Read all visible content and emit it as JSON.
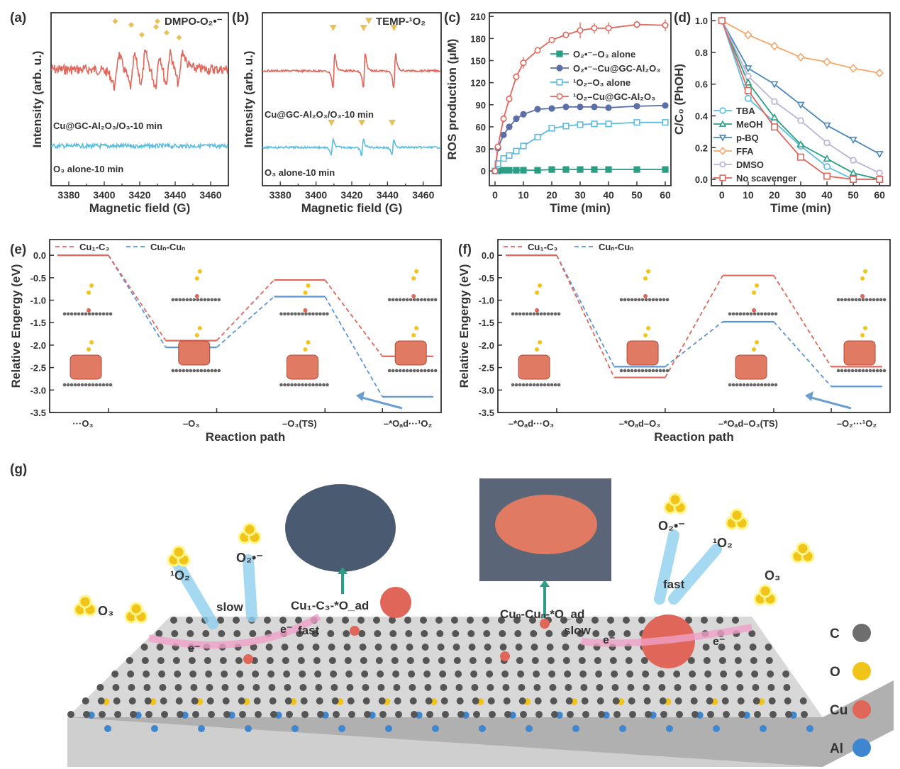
{
  "panel_labels": [
    "(a)",
    "(b)",
    "(c)",
    "(d)",
    "(e)",
    "(f)",
    "(g)"
  ],
  "colors": {
    "red": "#e0675c",
    "cyan": "#5bbde0",
    "navy": "#5b6ea8",
    "teal": "#2a9f84",
    "orange": "#f2a86c",
    "lavender": "#b9b4d9",
    "steel": "#4b87b9",
    "marker": "#e8c15a",
    "blue_line": "#5b95d6"
  },
  "chart_data": [
    {
      "id": "a",
      "type": "line",
      "xlabel": "Magnetic field (G)",
      "ylabel": "Intensity (arb. u.)",
      "xlim": [
        3370,
        3470
      ],
      "xticks": [
        3380,
        3400,
        3420,
        3440,
        3460
      ],
      "legend": {
        "marker": "diamond",
        "label": "DMPO-O₂•⁻"
      },
      "series": [
        {
          "name": "Cu@GC-Al₂O₃/O₃-10 min",
          "color": "#e0675c",
          "peaks": [
            3407,
            3416,
            3422,
            3430,
            3436,
            3443
          ],
          "signal": "strong"
        },
        {
          "name": "O₃ alone-10 min",
          "color": "#5bbde0",
          "peaks": [],
          "signal": "none"
        }
      ]
    },
    {
      "id": "b",
      "type": "line",
      "xlabel": "Magnetic field (G)",
      "ylabel": "Intensity (arb. u.)",
      "xlim": [
        3370,
        3470
      ],
      "xticks": [
        3380,
        3400,
        3420,
        3440,
        3460
      ],
      "legend": {
        "marker": "triangle-down",
        "label": "TEMP-¹O₂"
      },
      "series": [
        {
          "name": "Cu@GC-Al₂O₃/O₃-10 min",
          "color": "#e0675c",
          "peaks": [
            3410,
            3427,
            3444
          ],
          "signal": "strong"
        },
        {
          "name": "O₃ alone-10 min",
          "color": "#5bbde0",
          "peaks": [
            3409,
            3426,
            3443
          ],
          "signal": "medium"
        }
      ]
    },
    {
      "id": "c",
      "type": "line",
      "xlabel": "Time (min)",
      "ylabel": "ROS production (μM)",
      "xlim": [
        -2,
        62
      ],
      "ylim": [
        -20,
        215
      ],
      "xticks": [
        0,
        10,
        20,
        30,
        40,
        50,
        60
      ],
      "yticks": [
        0,
        30,
        60,
        90,
        120,
        150,
        180,
        210
      ],
      "x": [
        0,
        1,
        3,
        5,
        7.5,
        10,
        15,
        20,
        25,
        30,
        35,
        40,
        50,
        60
      ],
      "legend_position": "center-right",
      "series": [
        {
          "name": "O₂•⁻–O₃ alone",
          "color": "#2a9f84",
          "marker": "square-filled",
          "values": [
            0,
            0,
            1,
            1,
            1,
            1,
            1,
            2,
            2,
            2,
            2,
            2,
            2,
            2
          ]
        },
        {
          "name": "O₂•⁻–Cu@GC-Al₂O₃",
          "color": "#5b6ea8",
          "marker": "circle-filled",
          "values": [
            0,
            31,
            49,
            60,
            71,
            77,
            84,
            85,
            87,
            87,
            87,
            86,
            88,
            89
          ]
        },
        {
          "name": "¹O₂–O₃ alone",
          "color": "#5bbde0",
          "marker": "square-open",
          "values": [
            0,
            10,
            17,
            21,
            27,
            34,
            46,
            58,
            61,
            63,
            64,
            64,
            66,
            66
          ]
        },
        {
          "name": "¹O₂–Cu@GC-Al₂O₃",
          "color": "#e0675c",
          "marker": "circle-open",
          "values": [
            0,
            33,
            71,
            98,
            128,
            147,
            164,
            178,
            185,
            191,
            194,
            194,
            199,
            198
          ],
          "errors": [
            0,
            4,
            5,
            5,
            5,
            8,
            4,
            4,
            3,
            11,
            7,
            8,
            5,
            8
          ]
        }
      ]
    },
    {
      "id": "d",
      "type": "line",
      "xlabel": "Time (min)",
      "ylabel": "C/C₀ (PhOH)",
      "xlim": [
        -4,
        64
      ],
      "ylim": [
        -0.04,
        1.05
      ],
      "xticks": [
        0,
        10,
        20,
        30,
        40,
        50,
        60
      ],
      "yticks": [
        0.0,
        0.2,
        0.4,
        0.6,
        0.8,
        1.0
      ],
      "x": [
        0,
        10,
        20,
        30,
        40,
        50,
        60
      ],
      "legend_position": "bottom-left",
      "series": [
        {
          "name": "TBA",
          "color": "#5bbde0",
          "marker": "circle-open",
          "values": [
            1,
            0.51,
            0.36,
            0.21,
            0.08,
            0,
            0
          ]
        },
        {
          "name": "MeOH",
          "color": "#2a9f84",
          "marker": "triangle-up-open",
          "values": [
            1,
            0.61,
            0.39,
            0.22,
            0.13,
            0.04,
            0
          ]
        },
        {
          "name": "p-BQ",
          "color": "#4b87b9",
          "marker": "triangle-down-open",
          "values": [
            1,
            0.7,
            0.6,
            0.47,
            0.34,
            0.25,
            0.16
          ]
        },
        {
          "name": "FFA",
          "color": "#f2a86c",
          "marker": "diamond-open",
          "values": [
            1,
            0.91,
            0.84,
            0.77,
            0.74,
            0.7,
            0.67
          ]
        },
        {
          "name": "DMSO",
          "color": "#b9b4d9",
          "marker": "hexagon-open",
          "values": [
            1,
            0.65,
            0.49,
            0.37,
            0.23,
            0.12,
            0.04
          ]
        },
        {
          "name": "No scavenger",
          "color": "#e0675c",
          "marker": "square-open",
          "values": [
            1,
            0.56,
            0.33,
            0.14,
            0.02,
            0,
            0
          ]
        }
      ]
    },
    {
      "id": "e",
      "type": "energy-diagram",
      "xlabel": "Reaction path",
      "ylabel": "Relative Engergy (eV)",
      "ylim": [
        -3.5,
        0.35
      ],
      "yticks": [
        0.0,
        -0.5,
        -1.0,
        -1.5,
        -2.0,
        -2.5,
        -3.0,
        -3.5
      ],
      "categories": [
        "···O₃",
        "–O₃",
        "–O₃(TS)",
        "–*O_ad···¹O₂"
      ],
      "legend_position": "top-left",
      "series": [
        {
          "name": "Cu₁-C₃",
          "color": "#e0675c",
          "values": [
            0.0,
            -1.9,
            -0.55,
            -2.25
          ]
        },
        {
          "name": "Cuₙ-Cuₙ",
          "color": "#5b95d6",
          "values": [
            0.0,
            -2.05,
            -0.92,
            -3.15
          ]
        }
      ]
    },
    {
      "id": "f",
      "type": "energy-diagram",
      "xlabel": "Reaction path",
      "ylabel": "Relative Engergy (eV)",
      "ylim": [
        -3.5,
        0.35
      ],
      "yticks": [
        0.0,
        -0.5,
        -1.0,
        -1.5,
        -2.0,
        -2.5,
        -3.0,
        -3.5
      ],
      "categories": [
        "–*O_ad···O₃",
        "–*O_ad–O₃",
        "–*O_ad–O₃(TS)",
        "–O₂···¹O₂"
      ],
      "legend_position": "top-left",
      "series": [
        {
          "name": "Cu₁-C₃",
          "color": "#e0675c",
          "values": [
            0.0,
            -2.72,
            -0.45,
            -2.48
          ]
        },
        {
          "name": "Cuₙ-Cuₙ",
          "color": "#5b95d6",
          "values": [
            0.0,
            -2.48,
            -1.48,
            -2.92
          ]
        }
      ]
    }
  ],
  "schematic": {
    "labels": {
      "o3_left": "O₃",
      "o3_right": "O₃",
      "singlet_left": "¹O₂",
      "singlet_right": "¹O₂",
      "superoxide_left": "O₂•⁻",
      "superoxide_right": "O₂•⁻",
      "slow_left": "slow",
      "fast_left": "fast",
      "slow_right": "slow",
      "fast_right": "fast",
      "site_single": "Cu₁-C₃-*O_ad",
      "site_cluster": "Cuₙ-Cuₙ-*O_ad",
      "electron": "e⁻"
    },
    "legend": [
      {
        "label": "C",
        "color": "#6e6e6e"
      },
      {
        "label": "O",
        "color": "#f0c419"
      },
      {
        "label": "Cu",
        "color": "#e0665a"
      },
      {
        "label": "Al",
        "color": "#3e86d0"
      }
    ]
  }
}
